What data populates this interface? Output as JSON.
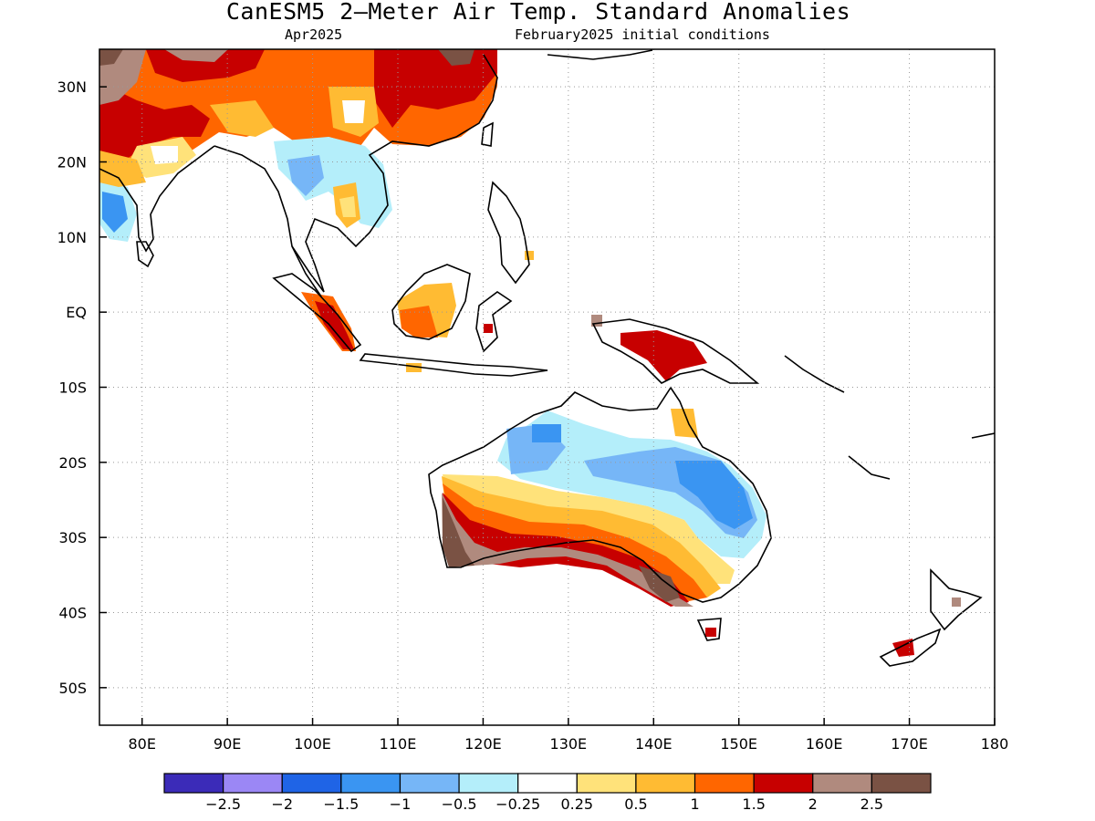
{
  "title": "CanESM5 2—Meter Air Temp. Standard Anomalies",
  "subtitle_left": "Apr2025",
  "subtitle_right": "February2025 initial conditions",
  "map": {
    "lon_range": [
      75,
      180
    ],
    "lat_range": [
      -55,
      35
    ],
    "lat_ticks": [
      {
        "value": 30,
        "label": "30N"
      },
      {
        "value": 20,
        "label": "20N"
      },
      {
        "value": 10,
        "label": "10N"
      },
      {
        "value": 0,
        "label": "EQ"
      },
      {
        "value": -10,
        "label": "10S"
      },
      {
        "value": -20,
        "label": "20S"
      },
      {
        "value": -30,
        "label": "30S"
      },
      {
        "value": -40,
        "label": "40S"
      },
      {
        "value": -50,
        "label": "50S"
      }
    ],
    "lon_ticks": [
      {
        "value": 80,
        "label": "80E"
      },
      {
        "value": 90,
        "label": "90E"
      },
      {
        "value": 100,
        "label": "100E"
      },
      {
        "value": 110,
        "label": "110E"
      },
      {
        "value": 120,
        "label": "120E"
      },
      {
        "value": 130,
        "label": "130E"
      },
      {
        "value": 140,
        "label": "140E"
      },
      {
        "value": 150,
        "label": "150E"
      },
      {
        "value": 160,
        "label": "160E"
      },
      {
        "value": 170,
        "label": "170E"
      },
      {
        "value": 180,
        "label": "180"
      }
    ],
    "grid": true
  },
  "colorbar": {
    "colors": [
      "#3b2bb8",
      "#9b87f5",
      "#1f64e6",
      "#3a95f2",
      "#76b6f7",
      "#b4eefa",
      "#ffffff",
      "#ffe27a",
      "#ffbb33",
      "#ff6600",
      "#c70000",
      "#b08a7e",
      "#7a5244"
    ],
    "labels": [
      "−2.5",
      "−2",
      "−1.5",
      "−1",
      "−0.5",
      "−0.25",
      "0.25",
      "0.5",
      "1",
      "1.5",
      "2",
      "2.5"
    ]
  }
}
